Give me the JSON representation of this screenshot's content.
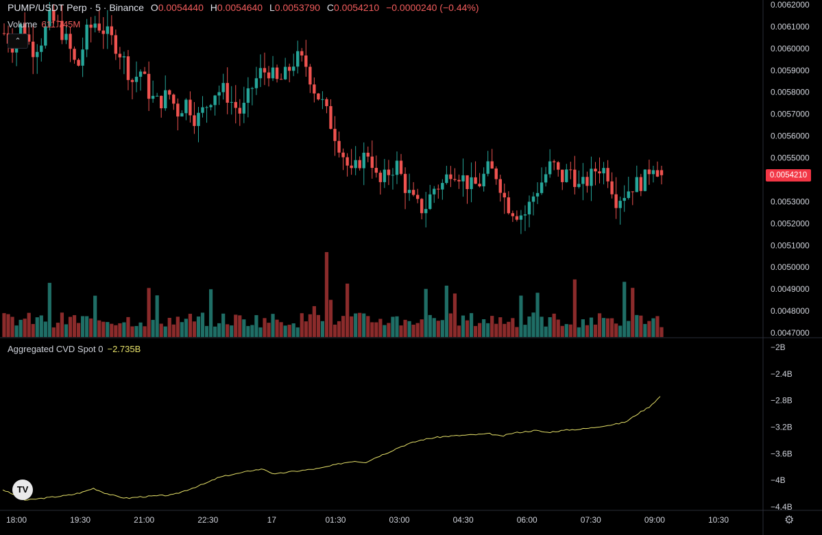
{
  "legend": {
    "symbol": "PUMP/USDT Perp · 5 · Binance",
    "open_label": "O",
    "open": "0.0054440",
    "high_label": "H",
    "high": "0.0054640",
    "low_label": "L",
    "low": "0.0053790",
    "close_label": "C",
    "close": "0.0054210",
    "change": "−0.0000240 (−0.44%)"
  },
  "volume_legend": {
    "label": "Volume",
    "value": "611.745M"
  },
  "collapse_icon": "chevron-up-icon",
  "cvd_legend": {
    "label": "Aggregated CVD Spot 0",
    "value": "−2.735B"
  },
  "last_price_tag": "0.0054210",
  "logo_icon": "tradingview-logo",
  "settings_icon": "gear-icon",
  "colors": {
    "up": "#26a69a",
    "down": "#ef5350",
    "up_vol": "#1f6e66",
    "down_vol": "#8b2b2b",
    "cvd": "#e8e36a",
    "price_tag": "#f23645"
  },
  "chart_data": [
    {
      "type": "candlestick",
      "title": "PUMP/USDT Perp · 5 · Binance",
      "y_ticks": [
        "0.0062000",
        "0.0061000",
        "0.0060000",
        "0.0059000",
        "0.0058000",
        "0.0057000",
        "0.0056000",
        "0.0055000",
        "0.0053000",
        "0.0052000",
        "0.0051000",
        "0.0050000",
        "0.0049000",
        "0.0048000",
        "0.0047000"
      ],
      "ylim": [
        0.0047,
        0.0062
      ],
      "x_ticks": [
        "18:00",
        "19:30",
        "21:00",
        "22:30",
        "17",
        "01:30",
        "03:00",
        "04:30",
        "06:00",
        "07:30",
        "09:00",
        "10:30"
      ],
      "price_path": [
        0.00607,
        0.00601,
        0.00612,
        0.00599,
        0.00603,
        0.00614,
        0.0061,
        0.00602,
        0.0059,
        0.00607,
        0.00612,
        0.00608,
        0.00603,
        0.00596,
        0.00585,
        0.0059,
        0.00578,
        0.00575,
        0.0058,
        0.00571,
        0.00576,
        0.00567,
        0.00573,
        0.0058,
        0.00581,
        0.00575,
        0.0057,
        0.00581,
        0.00589,
        0.0059,
        0.00584,
        0.00589,
        0.00596,
        0.00593,
        0.00581,
        0.00574,
        0.00563,
        0.00553,
        0.00542,
        0.00549,
        0.00553,
        0.00537,
        0.00543,
        0.00547,
        0.00536,
        0.00529,
        0.00526,
        0.00536,
        0.00538,
        0.00545,
        0.00542,
        0.00537,
        0.00538,
        0.00545,
        0.00542,
        0.00529,
        0.00525,
        0.00524,
        0.00533,
        0.0054,
        0.00548,
        0.0054,
        0.00545,
        0.00536,
        0.0054,
        0.00546,
        0.00544,
        0.00531,
        0.00534,
        0.00538,
        0.00539,
        0.00548,
        0.00542
      ],
      "volume_bars": 160,
      "volume_unit": "M"
    },
    {
      "type": "line",
      "title": "Aggregated CVD Spot 0",
      "y_ticks": [
        "-2B",
        "-2.4B",
        "-2.8B",
        "-3.2B",
        "-3.6B",
        "-4B",
        "-4.4B"
      ],
      "ylim": [
        -4.4,
        -2.0
      ],
      "cvd_path_billions": [
        -4.14,
        -4.22,
        -4.3,
        -4.28,
        -4.26,
        -4.24,
        -4.22,
        -4.18,
        -4.12,
        -4.19,
        -4.24,
        -4.27,
        -4.25,
        -4.24,
        -4.23,
        -4.22,
        -4.16,
        -4.1,
        -4.04,
        -3.96,
        -3.92,
        -3.89,
        -3.85,
        -3.83,
        -3.91,
        -3.88,
        -3.86,
        -3.84,
        -3.82,
        -3.78,
        -3.74,
        -3.71,
        -3.73,
        -3.65,
        -3.58,
        -3.5,
        -3.44,
        -3.39,
        -3.36,
        -3.34,
        -3.33,
        -3.32,
        -3.31,
        -3.3,
        -3.34,
        -3.29,
        -3.27,
        -3.25,
        -3.28,
        -3.26,
        -3.24,
        -3.23,
        -3.21,
        -3.18,
        -3.16,
        -3.12,
        -3.0,
        -2.9,
        -2.74
      ]
    }
  ]
}
